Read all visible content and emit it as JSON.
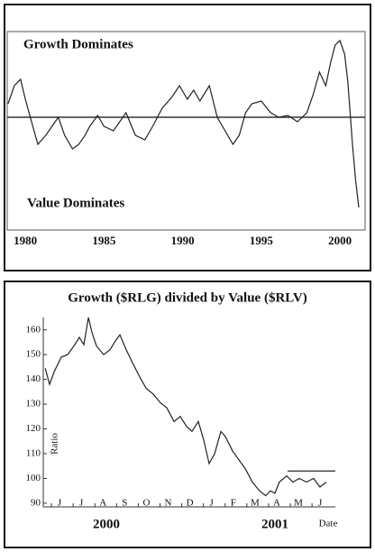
{
  "chart_data": [
    {
      "type": "line",
      "annotations": [
        "Growth Dominates",
        "Value Dominates"
      ],
      "x": [
        1978.9,
        1979.3,
        1979.7,
        1980,
        1980.4,
        1980.8,
        1981.3,
        1981.7,
        1982.1,
        1982.5,
        1983,
        1983.4,
        1983.8,
        1984.1,
        1984.6,
        1985,
        1985.6,
        1986,
        1986.4,
        1987,
        1987.6,
        1988.1,
        1988.7,
        1989.3,
        1989.8,
        1990.3,
        1990.7,
        1991.1,
        1991.7,
        1992.2,
        1992.7,
        1993.2,
        1993.6,
        1994,
        1994.4,
        1995,
        1995.6,
        1996.1,
        1996.7,
        1997.3,
        1997.9,
        1998.3,
        1998.7,
        1999.1,
        1999.4,
        1999.7,
        2000,
        2000.3,
        2000.5,
        2000.8,
        2001,
        2001.2
      ],
      "values": [
        1.5,
        3.5,
        4.2,
        2,
        -0.5,
        -3,
        -2,
        -1,
        0,
        -2,
        -3.5,
        -3,
        -2,
        -1,
        0.2,
        -1,
        -1.5,
        -0.5,
        0.5,
        -2,
        -2.5,
        -1,
        1,
        2.2,
        3.5,
        2,
        3,
        1.8,
        3.5,
        0,
        -1.5,
        -3,
        -2,
        0.5,
        1.5,
        1.8,
        0.5,
        0,
        0.2,
        -0.5,
        0.5,
        2.5,
        5,
        3.5,
        6,
        8,
        8.5,
        7,
        4,
        -3,
        -7,
        -10
      ],
      "color": "#222222",
      "baseline": 0,
      "xlim": [
        1978.85,
        2001.6
      ],
      "xticks": [
        1980,
        1985,
        1990,
        1995,
        2000
      ],
      "ylim": [
        -12,
        9.5
      ]
    },
    {
      "type": "line",
      "title": "Growth ($RLG) divided by Value ($RLV)",
      "y_label": "Ratio",
      "x_label": "Date",
      "year_labels": [
        "2000",
        "2001"
      ],
      "x": [
        -0.66,
        -0.46,
        -0.25,
        0.08,
        0.37,
        0.66,
        0.91,
        1.12,
        1.33,
        1.49,
        1.7,
        2.03,
        2.32,
        2.57,
        2.78,
        3.07,
        3.4,
        3.69,
        3.98,
        4.32,
        4.65,
        4.94,
        5.27,
        5.56,
        5.85,
        6.1,
        6.39,
        6.64,
        6.89,
        7.14,
        7.43,
        7.63,
        7.97,
        8.26,
        8.55,
        8.88,
        9.21,
        9.5,
        9.71,
        9.92,
        10.12,
        10.46,
        10.75,
        11.04,
        11.37,
        11.7,
        11.99,
        12.28
      ],
      "values": [
        144.5,
        138,
        143,
        149,
        150,
        153.5,
        157,
        154,
        165,
        159,
        153.5,
        150,
        152,
        155.5,
        158,
        152,
        146,
        141,
        136.5,
        134,
        130.5,
        128.5,
        123,
        125,
        121,
        119,
        123,
        115.5,
        106,
        110,
        119,
        117,
        111,
        107.5,
        104,
        98.5,
        95,
        93,
        95,
        94,
        98.5,
        101,
        98.5,
        100,
        98.5,
        100,
        96.5,
        98.5
      ],
      "color": "#222222",
      "resistance": {
        "value": 103,
        "x": [
          10.5,
          12.7
        ]
      },
      "xlim": [
        -0.75,
        12.7
      ],
      "xticks": [
        {
          "value": 0,
          "label": "J"
        },
        {
          "value": 1,
          "label": "J"
        },
        {
          "value": 2,
          "label": "A"
        },
        {
          "value": 3,
          "label": "S"
        },
        {
          "value": 4,
          "label": "O"
        },
        {
          "value": 5,
          "label": "N"
        },
        {
          "value": 6,
          "label": "D"
        },
        {
          "value": 7,
          "label": "J"
        },
        {
          "value": 8,
          "label": "F"
        },
        {
          "value": 9,
          "label": "M"
        },
        {
          "value": 10,
          "label": "A"
        },
        {
          "value": 11,
          "label": "M"
        },
        {
          "value": 12,
          "label": "J"
        }
      ],
      "ylim": [
        88.5,
        165
      ],
      "yticks": [
        90,
        100,
        110,
        120,
        130,
        140,
        150,
        160
      ]
    }
  ]
}
